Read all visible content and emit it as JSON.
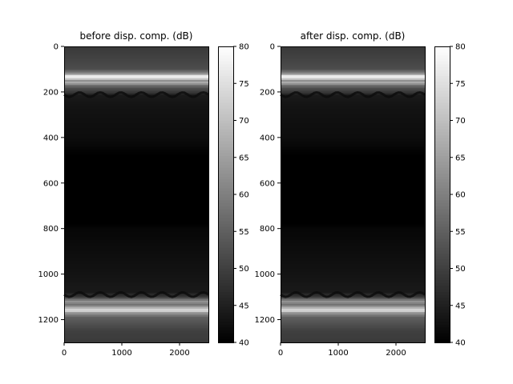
{
  "chart_data": [
    {
      "type": "heatmap",
      "title": "before disp. comp. (dB)",
      "colormap": "gray",
      "x_ticks": [
        "0",
        "1000",
        "2000"
      ],
      "x_tick_values": [
        0,
        1000,
        2000
      ],
      "xlim": [
        0,
        2500
      ],
      "y_ticks": [
        "0",
        "200",
        "400",
        "600",
        "800",
        "1000",
        "1200"
      ],
      "y_tick_values": [
        0,
        200,
        400,
        600,
        800,
        1000,
        1200
      ],
      "ylim": [
        1300,
        0
      ],
      "colorbar": {
        "ticks": [
          "40",
          "45",
          "50",
          "55",
          "60",
          "65",
          "70",
          "75",
          "80"
        ],
        "tick_values": [
          40,
          45,
          50,
          55,
          60,
          65,
          70,
          75,
          80
        ],
        "range": [
          40,
          80
        ]
      },
      "depth_profile_db": [
        [
          0,
          49
        ],
        [
          40,
          50
        ],
        [
          100,
          52
        ],
        [
          120,
          62
        ],
        [
          130,
          77
        ],
        [
          140,
          76
        ],
        [
          150,
          62
        ],
        [
          160,
          68
        ],
        [
          170,
          58
        ],
        [
          185,
          52
        ],
        [
          205,
          48
        ],
        [
          215,
          44
        ],
        [
          260,
          43
        ],
        [
          400,
          42
        ],
        [
          480,
          40
        ],
        [
          520,
          38
        ],
        [
          700,
          38
        ],
        [
          760,
          39
        ],
        [
          800,
          41
        ],
        [
          900,
          42
        ],
        [
          1000,
          43
        ],
        [
          1080,
          44
        ],
        [
          1100,
          49
        ],
        [
          1120,
          63
        ],
        [
          1135,
          58
        ],
        [
          1150,
          69
        ],
        [
          1160,
          76
        ],
        [
          1170,
          64
        ],
        [
          1190,
          55
        ],
        [
          1250,
          50
        ],
        [
          1300,
          49
        ]
      ]
    },
    {
      "type": "heatmap",
      "title": "after disp. comp. (dB)",
      "colormap": "gray",
      "x_ticks": [
        "0",
        "1000",
        "2000"
      ],
      "x_tick_values": [
        0,
        1000,
        2000
      ],
      "xlim": [
        0,
        2500
      ],
      "y_ticks": [
        "0",
        "200",
        "400",
        "600",
        "800",
        "1000",
        "1200"
      ],
      "y_tick_values": [
        0,
        200,
        400,
        600,
        800,
        1000,
        1200
      ],
      "ylim": [
        1300,
        0
      ],
      "colorbar": {
        "ticks": [
          "40",
          "45",
          "50",
          "55",
          "60",
          "65",
          "70",
          "75",
          "80"
        ],
        "tick_values": [
          40,
          45,
          50,
          55,
          60,
          65,
          70,
          75,
          80
        ],
        "range": [
          40,
          80
        ]
      },
      "depth_profile_db": [
        [
          0,
          49
        ],
        [
          40,
          50
        ],
        [
          100,
          52
        ],
        [
          120,
          62
        ],
        [
          130,
          77
        ],
        [
          140,
          76
        ],
        [
          150,
          62
        ],
        [
          160,
          68
        ],
        [
          170,
          58
        ],
        [
          185,
          52
        ],
        [
          205,
          48
        ],
        [
          215,
          44
        ],
        [
          260,
          43
        ],
        [
          400,
          42
        ],
        [
          480,
          40
        ],
        [
          520,
          38
        ],
        [
          700,
          38
        ],
        [
          760,
          39
        ],
        [
          800,
          41
        ],
        [
          900,
          42
        ],
        [
          1000,
          43
        ],
        [
          1080,
          44
        ],
        [
          1100,
          49
        ],
        [
          1120,
          63
        ],
        [
          1135,
          58
        ],
        [
          1150,
          69
        ],
        [
          1160,
          76
        ],
        [
          1170,
          64
        ],
        [
          1190,
          55
        ],
        [
          1250,
          50
        ],
        [
          1300,
          49
        ]
      ]
    }
  ]
}
